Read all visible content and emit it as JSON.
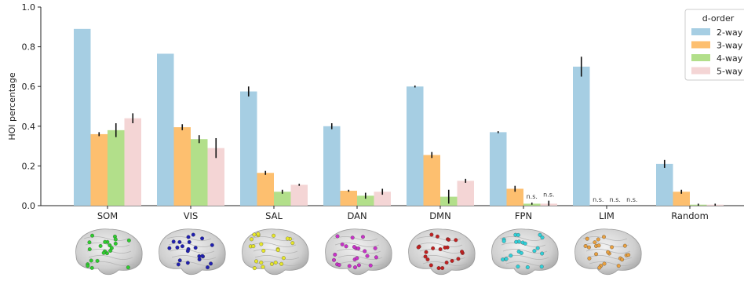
{
  "chart_data": {
    "type": "bar",
    "title": "",
    "xlabel": "",
    "ylabel": "HOI percentage",
    "ylim": [
      0,
      1.0
    ],
    "yticks": [
      "0.0",
      "0.2",
      "0.4",
      "0.6",
      "0.8",
      "1.0"
    ],
    "categories": [
      "SOM",
      "VIS",
      "SAL",
      "DAN",
      "DMN",
      "FPN",
      "LIM",
      "Random"
    ],
    "legend_title": "d-order",
    "legend_position": "top-right",
    "series": [
      {
        "name": "2-way",
        "color": "#a6cee3",
        "values": [
          0.89,
          0.765,
          0.575,
          0.4,
          0.6,
          0.37,
          0.7,
          0.21
        ],
        "errors": [
          0.0,
          0.0,
          0.025,
          0.015,
          0.005,
          0.005,
          0.05,
          0.02
        ]
      },
      {
        "name": "3-way",
        "color": "#fdbf6f",
        "values": [
          0.36,
          0.395,
          0.165,
          0.075,
          0.255,
          0.085,
          0.0,
          0.07
        ],
        "errors": [
          0.01,
          0.015,
          0.01,
          0.005,
          0.015,
          0.015,
          0.0,
          0.01
        ]
      },
      {
        "name": "4-way",
        "color": "#b2df8a",
        "values": [
          0.38,
          0.335,
          0.07,
          0.05,
          0.045,
          0.01,
          0.0,
          0.005
        ],
        "errors": [
          0.035,
          0.02,
          0.01,
          0.015,
          0.035,
          0.005,
          0.0,
          0.005
        ]
      },
      {
        "name": "5-way",
        "color": "#f4d5d5",
        "values": [
          0.44,
          0.29,
          0.105,
          0.07,
          0.125,
          0.01,
          0.0,
          0.005
        ],
        "errors": [
          0.025,
          0.05,
          0.005,
          0.015,
          0.01,
          0.015,
          0.0,
          0.005
        ]
      }
    ],
    "annotations": [
      {
        "category": "FPN",
        "series": "4-way",
        "text": "n.s."
      },
      {
        "category": "FPN",
        "series": "5-way",
        "text": "n.s."
      },
      {
        "category": "LIM",
        "series": "3-way",
        "text": "n.s."
      },
      {
        "category": "LIM",
        "series": "4-way",
        "text": "n.s."
      },
      {
        "category": "LIM",
        "series": "5-way",
        "text": "n.s."
      }
    ],
    "network_colors": {
      "SOM": "#2ecc2e",
      "VIS": "#2020b0",
      "SAL": "#e6e62a",
      "DAN": "#c832c8",
      "DMN": "#c02020",
      "FPN": "#30d0d8",
      "LIM": "#e8a040",
      "Random": null
    },
    "grid": false
  }
}
